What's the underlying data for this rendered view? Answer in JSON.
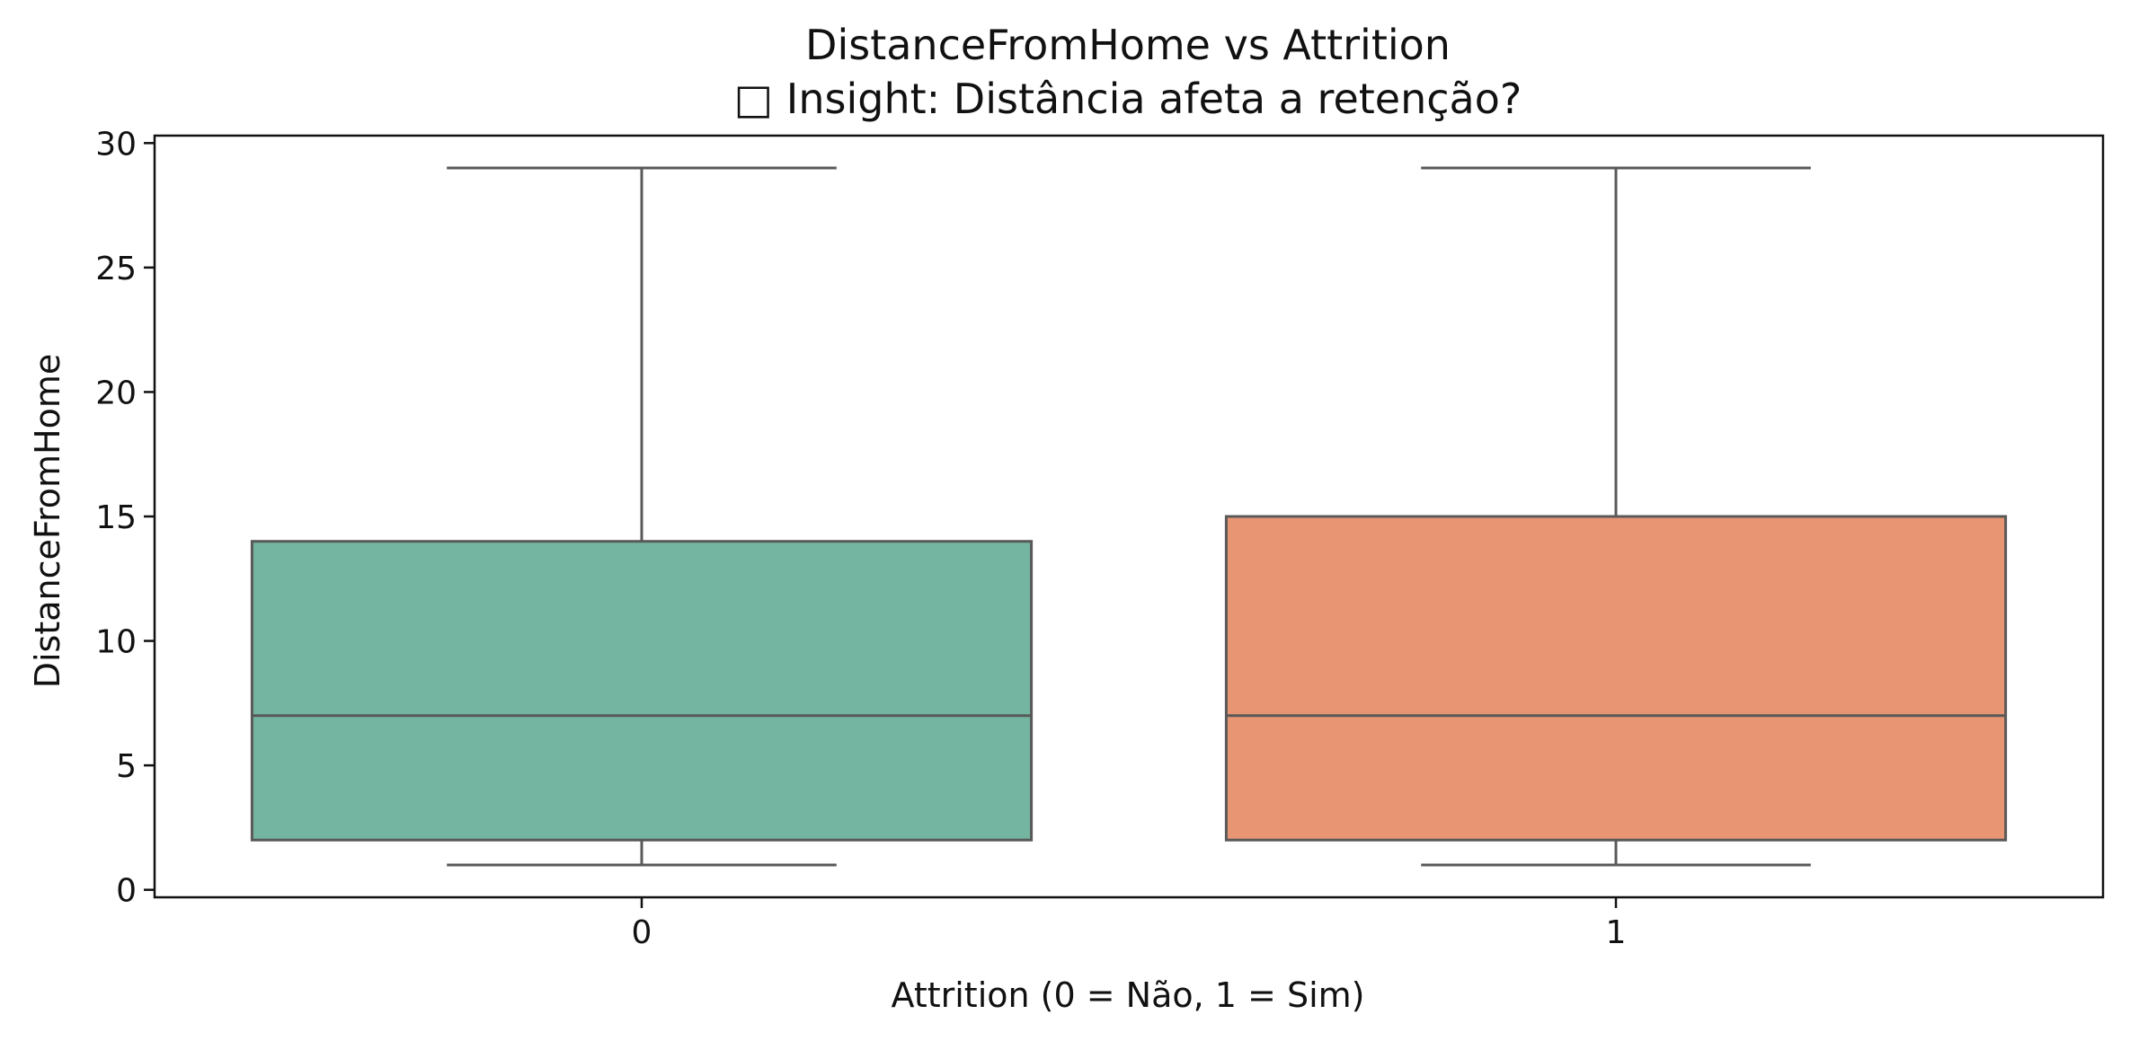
{
  "chart_data": {
    "type": "box",
    "title": "DistanceFromHome vs Attrition",
    "subtitle": "□ Insight: Distância afeta a retenção?",
    "xlabel": "Attrition (0 = Não, 1 = Sim)",
    "ylabel": "DistanceFromHome",
    "categories": [
      "0",
      "1"
    ],
    "ylim": [
      -0.3,
      30.3
    ],
    "yticks": [
      0,
      5,
      10,
      15,
      20,
      25,
      30
    ],
    "grid": false,
    "boxes": [
      {
        "category": "0",
        "whisker_low": 1,
        "q1": 2,
        "median": 7,
        "q3": 14,
        "whisker_high": 29,
        "color": "#73b5a0"
      },
      {
        "category": "1",
        "whisker_low": 1,
        "q1": 2,
        "median": 7,
        "q3": 15,
        "whisker_high": 29,
        "color": "#e89574"
      }
    ],
    "line_color": "#595959"
  }
}
